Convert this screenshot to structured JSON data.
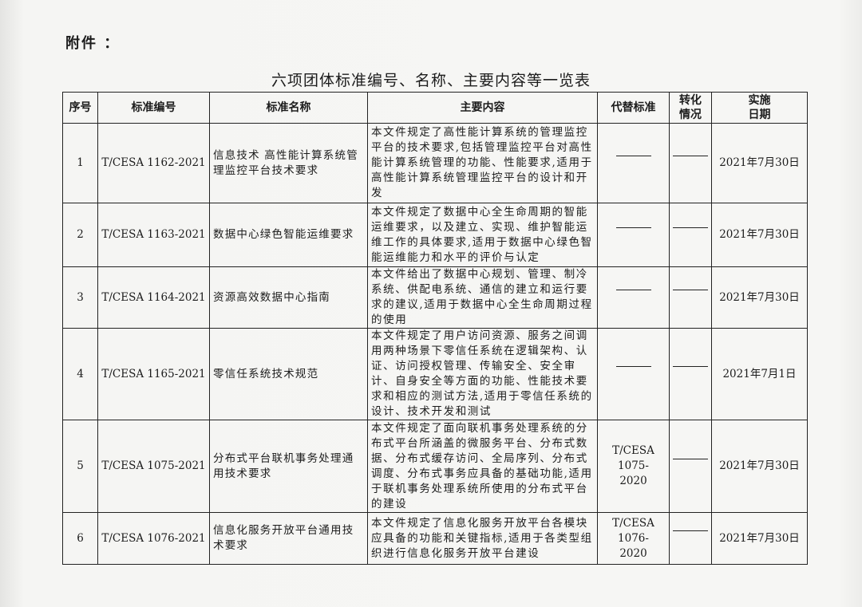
{
  "attachment_label": "附件 ：",
  "title": "六项团体标准编号、名称、主要内容等一览表",
  "headers": {
    "seq": "序号",
    "code": "标准编号",
    "name": "标准名称",
    "content": "主要内容",
    "replace": "代替标准",
    "status": "转化情况",
    "date": "实施日期"
  },
  "rows": [
    {
      "seq": "1",
      "code": "T/CESA 1162-2021",
      "name": "信息技术 高性能计算系统管理监控平台技术要求",
      "content": "本文件规定了高性能计算系统的管理监控平台的技术要求,包括管理监控平台对高性能计算系统管理的功能、性能要求,适用于高性能计算系统管理监控平台的设计和开发",
      "replace": "——",
      "status": "——",
      "date": "2021年7月30日"
    },
    {
      "seq": "2",
      "code": "T/CESA 1163-2021",
      "name": "数据中心绿色智能运维要求",
      "content": "本文件规定了数据中心全生命周期的智能运维要求，以及建立、实现、维护智能运维工作的具体要求,适用于数据中心绿色智能运维能力和水平的评价与认定",
      "replace": "——",
      "status": "——",
      "date": "2021年7月30日"
    },
    {
      "seq": "3",
      "code": "T/CESA 1164-2021",
      "name": "资源高效数据中心指南",
      "content": "本文件给出了数据中心规划、管理、制冷系统、供配电系统、通信的建立和运行要求的建议,适用于数据中心全生命周期过程的使用",
      "replace": "——",
      "status": "——",
      "date": "2021年7月30日"
    },
    {
      "seq": "4",
      "code": "T/CESA 1165-2021",
      "name": "零信任系统技术规范",
      "content": "本文件规定了用户访问资源、服务之间调用两种场景下零信任系统在逻辑架构、认证、访问授权管理、传输安全、安全审计、自身安全等方面的功能、性能技术要求和相应的测试方法,适用于零信任系统的设计、技术开发和测试",
      "replace": "——",
      "status": "——",
      "date": "2021年7月1日"
    },
    {
      "seq": "5",
      "code": "T/CESA 1075-2021",
      "name": "分布式平台联机事务处理通用技术要求",
      "content": "本文件规定了面向联机事务处理系统的分布式平台所涵盖的微服务平台、分布式数据、分布式缓存访问、全局序列、分布式调度、分布式事务应具备的基础功能,适用于联机事务处理系统所使用的分布式平台的建设",
      "replace": "T/CESA 1075-2020",
      "status": "——",
      "date": "2021年7月30日"
    },
    {
      "seq": "6",
      "code": "T/CESA 1076-2021",
      "name": "信息化服务开放平台通用技术要求",
      "content": "本文件规定了信息化服务开放平台各模块应具备的功能和关键指标,适用于各类型组织进行信息化服务开放平台建设",
      "replace": "T/CESA 1076-2020",
      "status": "——",
      "date": "2021年7月30日"
    }
  ]
}
